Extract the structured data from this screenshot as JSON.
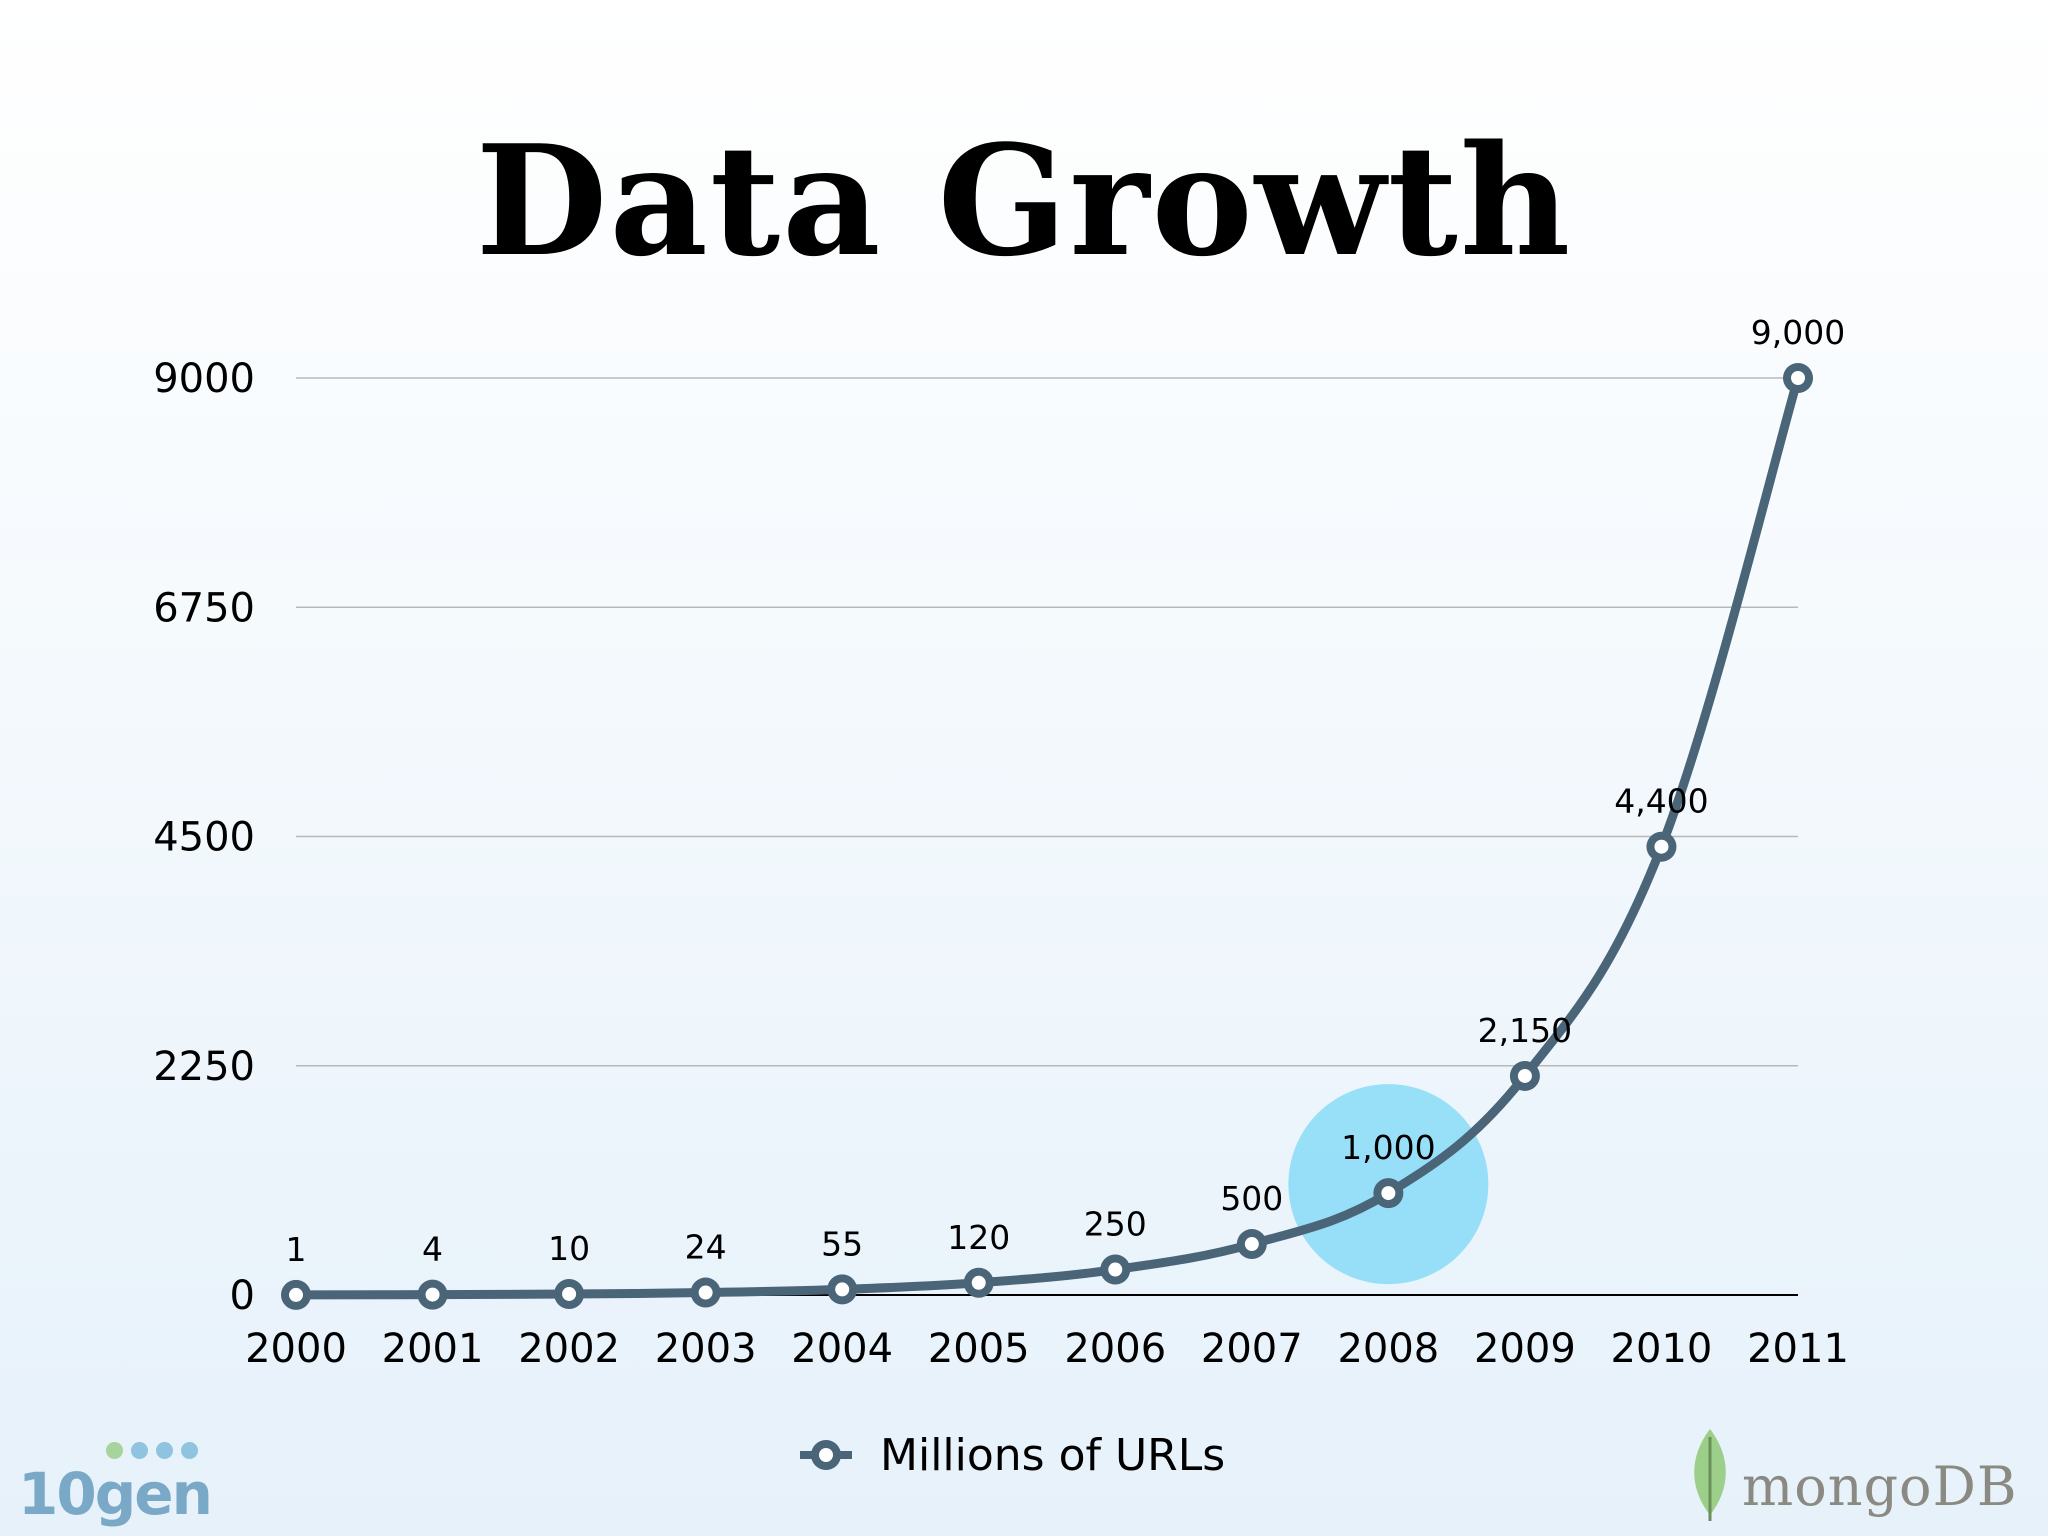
{
  "colors": {
    "line": "#4a6478",
    "highlight": "#82d9f8",
    "highlight_label": "#2f6e85",
    "gridline": "#b8b8b8"
  },
  "logos": {
    "left_text": "10gen",
    "right_text": "mongoDB",
    "right_icon": "leaf-icon"
  },
  "chart_data": {
    "type": "line",
    "title": "Data Growth",
    "xlabel": "",
    "ylabel": "",
    "categories": [
      "2000",
      "2001",
      "2002",
      "2003",
      "2004",
      "2005",
      "2006",
      "2007",
      "2008",
      "2009",
      "2010",
      "2011"
    ],
    "series": [
      {
        "name": "Millions of URLs",
        "values": [
          1,
          4,
          10,
          24,
          55,
          120,
          250,
          500,
          1000,
          2150,
          4400,
          9000
        ],
        "labels": [
          "1",
          "4",
          "10",
          "24",
          "55",
          "120",
          "250",
          "500",
          "1,000",
          "2,150",
          "4,400",
          "9,000"
        ]
      }
    ],
    "ylim": [
      0,
      9000
    ],
    "yticks": [
      0,
      2250,
      4500,
      6750,
      9000
    ],
    "grid": true,
    "legend": "bottom-center",
    "highlight_category": "2008"
  }
}
